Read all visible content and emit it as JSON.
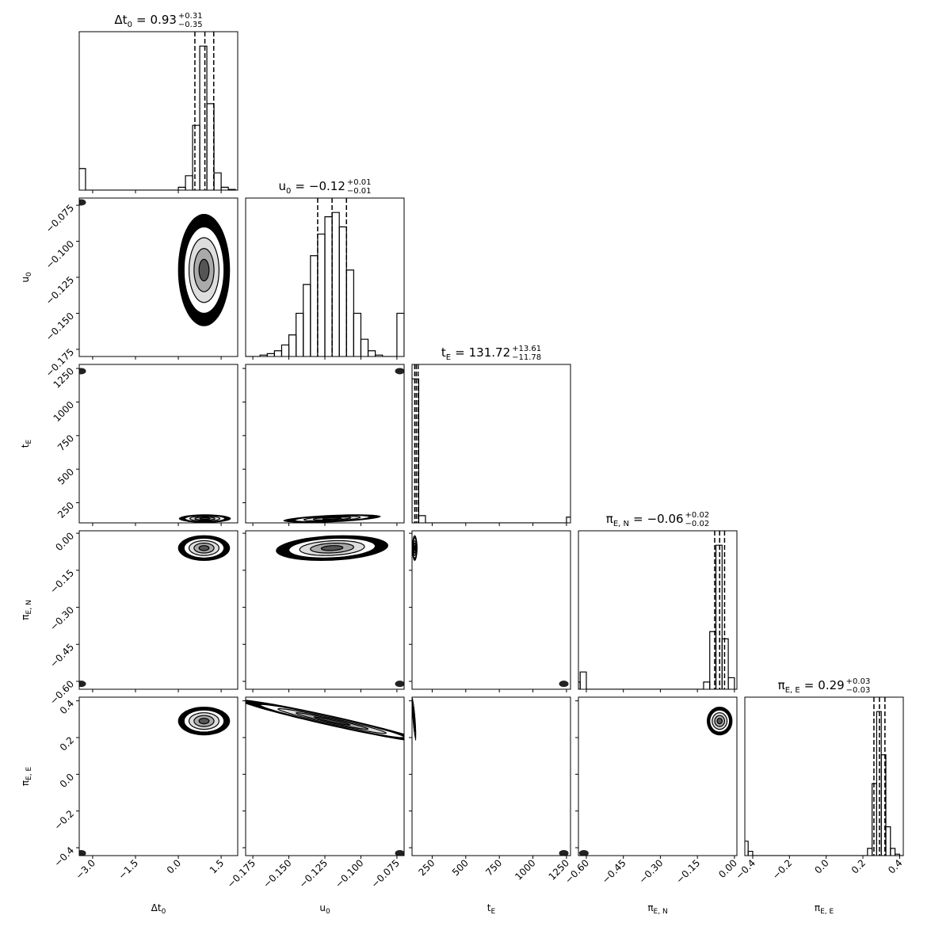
{
  "chart_data": {
    "type": "corner",
    "params": [
      {
        "label": {
          "main": "Δt",
          "sub": "0"
        },
        "eq": "=",
        "median": 0.93,
        "plus": {
          "value": 0.31,
          "label": "+0.31"
        },
        "minus": {
          "value": 0.35,
          "label": "−0.35"
        },
        "lim": [
          -3.47,
          2.08
        ],
        "ticks": [
          {
            "value": -3.0,
            "label": "−3.0"
          },
          {
            "value": -1.5,
            "label": "−1.5"
          },
          {
            "value": 0.0,
            "label": "0.0"
          },
          {
            "value": 1.5,
            "label": "1.5"
          }
        ],
        "bins": [
          -3.5,
          -3.25,
          -3.0,
          -2.75,
          -2.5,
          -2.25,
          -2.0,
          -1.75,
          -1.5,
          -1.25,
          -1.0,
          -0.75,
          -0.5,
          -0.25,
          0,
          0.25,
          0.5,
          0.75,
          1.0,
          1.25,
          1.5,
          1.75,
          2.0
        ],
        "counts": [
          0.15,
          0,
          0,
          0,
          0,
          0,
          0,
          0,
          0,
          0,
          0,
          0,
          0,
          0,
          0.02,
          0.1,
          0.45,
          1.0,
          0.6,
          0.12,
          0.02,
          0.005
        ]
      },
      {
        "label": {
          "main": "u",
          "sub": "0"
        },
        "eq": "=",
        "median": {
          "value": -0.12,
          "label": "−0.12"
        },
        "plus": {
          "value": 0.01,
          "label": "+0.01"
        },
        "minus": {
          "value": 0.01,
          "label": "−0.01"
        },
        "lim": [
          -0.18,
          -0.07
        ],
        "ticks": [
          {
            "value": -0.175,
            "label": "−0.175"
          },
          {
            "value": -0.15,
            "label": "−0.150"
          },
          {
            "value": -0.125,
            "label": "−0.125"
          },
          {
            "value": -0.1,
            "label": "−0.100"
          },
          {
            "value": -0.075,
            "label": "−0.075"
          }
        ],
        "bins": [
          -0.18,
          -0.175,
          -0.17,
          -0.165,
          -0.16,
          -0.155,
          -0.15,
          -0.145,
          -0.14,
          -0.135,
          -0.13,
          -0.125,
          -0.12,
          -0.115,
          -0.11,
          -0.105,
          -0.1,
          -0.095,
          -0.09,
          -0.085,
          -0.08,
          -0.075,
          -0.07
        ],
        "counts": [
          0,
          0,
          0.01,
          0.02,
          0.04,
          0.08,
          0.15,
          0.3,
          0.5,
          0.7,
          0.85,
          0.97,
          1.0,
          0.9,
          0.6,
          0.3,
          0.12,
          0.04,
          0.01,
          0,
          0,
          0.3
        ]
      },
      {
        "label": {
          "main": "t",
          "sub": "E"
        },
        "eq": "=",
        "median": 131.72,
        "plus": {
          "value": 13.61,
          "label": "+13.61"
        },
        "minus": {
          "value": 11.78,
          "label": "−11.78"
        },
        "lim": [
          100,
          1280
        ],
        "ticks": [
          250,
          500,
          750,
          1000,
          1250
        ],
        "bins": [
          100,
          150,
          200,
          250,
          300,
          350,
          400,
          450,
          500,
          550,
          600,
          650,
          700,
          750,
          800,
          850,
          900,
          950,
          1000,
          1050,
          1100,
          1150,
          1200,
          1250,
          1300
        ],
        "counts": [
          1.0,
          0.05,
          0,
          0,
          0,
          0,
          0,
          0,
          0,
          0,
          0,
          0,
          0,
          0,
          0,
          0,
          0,
          0,
          0,
          0,
          0,
          0,
          0,
          0.04
        ]
      },
      {
        "label": {
          "main": "π",
          "sub": "E, N"
        },
        "eq": "=",
        "median": {
          "value": -0.06,
          "label": "−0.06"
        },
        "plus": {
          "value": 0.02,
          "label": "+0.02"
        },
        "minus": {
          "value": 0.02,
          "label": "−0.02"
        },
        "lim": [
          -0.632,
          0.01
        ],
        "ticks": [
          {
            "value": -0.6,
            "label": "−0.60"
          },
          {
            "value": -0.45,
            "label": "−0.45"
          },
          {
            "value": -0.3,
            "label": "−0.30"
          },
          {
            "value": -0.15,
            "label": "−0.15"
          },
          {
            "value": 0.0,
            "label": "0.00"
          }
        ],
        "bins": [
          -0.65,
          -0.625,
          -0.6,
          -0.575,
          -0.55,
          -0.525,
          -0.5,
          -0.475,
          -0.45,
          -0.425,
          -0.4,
          -0.375,
          -0.35,
          -0.325,
          -0.3,
          -0.275,
          -0.25,
          -0.225,
          -0.2,
          -0.175,
          -0.15,
          -0.125,
          -0.1,
          -0.075,
          -0.05,
          -0.025,
          0
        ],
        "counts": [
          0.05,
          0.12,
          0,
          0,
          0,
          0,
          0,
          0,
          0,
          0,
          0,
          0,
          0,
          0,
          0,
          0,
          0,
          0,
          0,
          0,
          0,
          0.05,
          0.4,
          1.0,
          0.35,
          0.08
        ]
      },
      {
        "label": {
          "main": "π",
          "sub": "E, E"
        },
        "eq": "=",
        "median": 0.29,
        "plus": {
          "value": 0.03,
          "label": "+0.03"
        },
        "minus": {
          "value": 0.03,
          "label": "−0.03"
        },
        "lim": [
          -0.443,
          0.42
        ],
        "ticks": [
          {
            "value": -0.4,
            "label": "−0.4"
          },
          {
            "value": -0.2,
            "label": "−0.2"
          },
          {
            "value": 0.0,
            "label": "0.0"
          },
          0.2,
          0.4
        ],
        "bins": [
          -0.45,
          -0.425,
          -0.4,
          -0.375,
          -0.35,
          -0.325,
          -0.3,
          -0.275,
          -0.25,
          -0.225,
          -0.2,
          -0.175,
          -0.15,
          -0.125,
          -0.1,
          -0.075,
          -0.05,
          -0.025,
          0,
          0.025,
          0.05,
          0.075,
          0.1,
          0.125,
          0.15,
          0.175,
          0.2,
          0.225,
          0.25,
          0.275,
          0.3,
          0.325,
          0.35,
          0.375,
          0.4,
          0.425
        ],
        "counts": [
          0.1,
          0.03,
          0,
          0,
          0,
          0,
          0,
          0,
          0,
          0,
          0,
          0,
          0,
          0,
          0,
          0,
          0,
          0,
          0,
          0,
          0,
          0,
          0,
          0,
          0,
          0,
          0,
          0.05,
          0.5,
          1.0,
          0.7,
          0.2,
          0.05,
          0.01,
          0
        ]
      }
    ],
    "pairs": [
      {
        "x": 0,
        "y": 1,
        "center": [
          0.9,
          -0.12
        ],
        "spread": [
          0.35,
          0.015
        ],
        "rho": 0,
        "outlier": [
          -3.4,
          -0.073
        ]
      },
      {
        "x": 0,
        "y": 2,
        "center": [
          0.93,
          132
        ],
        "spread": [
          0.35,
          12
        ],
        "rho": 0,
        "outlier": [
          -3.4,
          1230
        ]
      },
      {
        "x": 1,
        "y": 2,
        "center": [
          -0.12,
          132
        ],
        "spread": [
          0.013,
          12
        ],
        "rho": 0.5,
        "outlier": [
          -0.073,
          1230
        ]
      },
      {
        "x": 0,
        "y": 3,
        "center": [
          0.9,
          -0.06
        ],
        "spread": [
          0.35,
          0.02
        ],
        "rho": 0,
        "outlier": [
          -3.4,
          -0.61
        ]
      },
      {
        "x": 1,
        "y": 3,
        "center": [
          -0.12,
          -0.06
        ],
        "spread": [
          0.015,
          0.02
        ],
        "rho": 0.2,
        "outlier": [
          -0.073,
          -0.61
        ]
      },
      {
        "x": 2,
        "y": 3,
        "center": [
          120,
          -0.06
        ],
        "spread": [
          8,
          0.02
        ],
        "rho": 0,
        "outlier": [
          1230,
          -0.61
        ]
      },
      {
        "x": 0,
        "y": 4,
        "center": [
          0.9,
          0.29
        ],
        "spread": [
          0.35,
          0.03
        ],
        "rho": 0,
        "outlier": [
          -3.4,
          -0.43
        ]
      },
      {
        "x": 1,
        "y": 4,
        "center": [
          -0.12,
          0.29
        ],
        "spread": [
          0.025,
          0.045
        ],
        "rho": -0.97,
        "outlier": [
          -0.073,
          -0.43
        ]
      },
      {
        "x": 2,
        "y": 4,
        "center": [
          115,
          0.3
        ],
        "spread": [
          6,
          0.045
        ],
        "rho": -0.8,
        "outlier": [
          1230,
          -0.43
        ]
      },
      {
        "x": 3,
        "y": 4,
        "center": [
          -0.06,
          0.29
        ],
        "spread": [
          0.02,
          0.03
        ],
        "rho": 0,
        "outlier": [
          -0.61,
          -0.43
        ]
      }
    ]
  }
}
